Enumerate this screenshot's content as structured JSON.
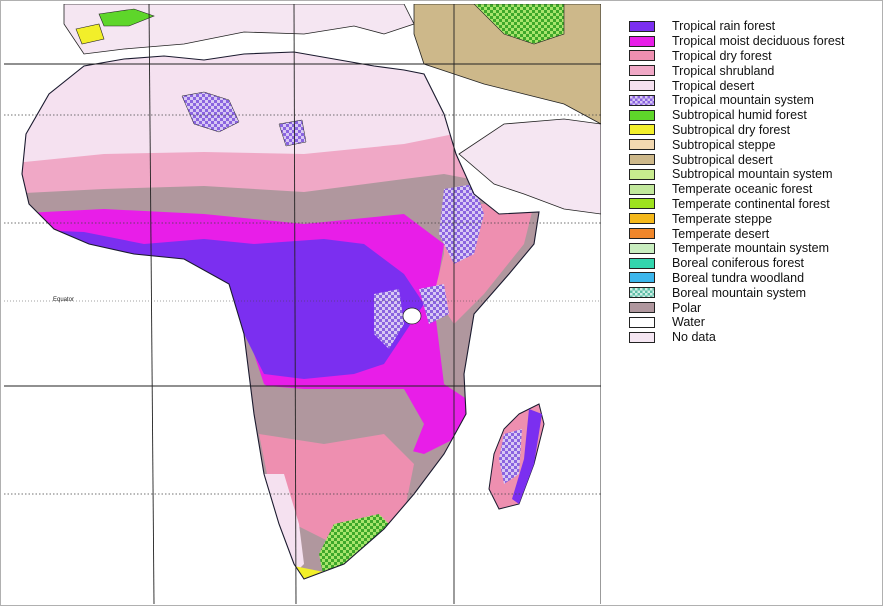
{
  "map": {
    "equator_label": "Equator"
  },
  "legend": {
    "items": [
      {
        "label": "Tropical rain forest",
        "color": "#7b2ff0"
      },
      {
        "label": "Tropical moist deciduous forest",
        "color": "#e81ee8"
      },
      {
        "label": "Tropical dry forest",
        "color": "#ee8fb0"
      },
      {
        "label": "Tropical shrubland",
        "color": "#f0a8c6"
      },
      {
        "label": "Tropical desert",
        "color": "#f5e1f0"
      },
      {
        "label": "Tropical mountain system",
        "color": "#c9b3f0",
        "pattern": "checker-purple"
      },
      {
        "label": "Subtropical humid forest",
        "color": "#5ed62a"
      },
      {
        "label": "Subtropical dry forest",
        "color": "#f2ef2a"
      },
      {
        "label": "Subtropical steppe",
        "color": "#f2d8b0"
      },
      {
        "label": "Subtropical desert",
        "color": "#cdb88a"
      },
      {
        "label": "Subtropical mountain system",
        "color": "#c8eb8e"
      },
      {
        "label": "Temperate oceanic forest",
        "color": "#c2e89c"
      },
      {
        "label": "Temperate continental forest",
        "color": "#9ee21e"
      },
      {
        "label": "Temperate steppe",
        "color": "#f5b81a"
      },
      {
        "label": "Temperate desert",
        "color": "#f0862a"
      },
      {
        "label": "Temperate mountain system",
        "color": "#c9eec0"
      },
      {
        "label": "Boreal coniferous forest",
        "color": "#32d6ae"
      },
      {
        "label": "Boreal tundra woodland",
        "color": "#3cb6ec"
      },
      {
        "label": "Boreal mountain system",
        "color": "#a6e0d0",
        "pattern": "checker-teal"
      },
      {
        "label": "Polar",
        "color": "#b0979e"
      },
      {
        "label": "Water",
        "color": "#ffffff"
      },
      {
        "label": "No data",
        "color": "#f5e6f2"
      }
    ]
  }
}
